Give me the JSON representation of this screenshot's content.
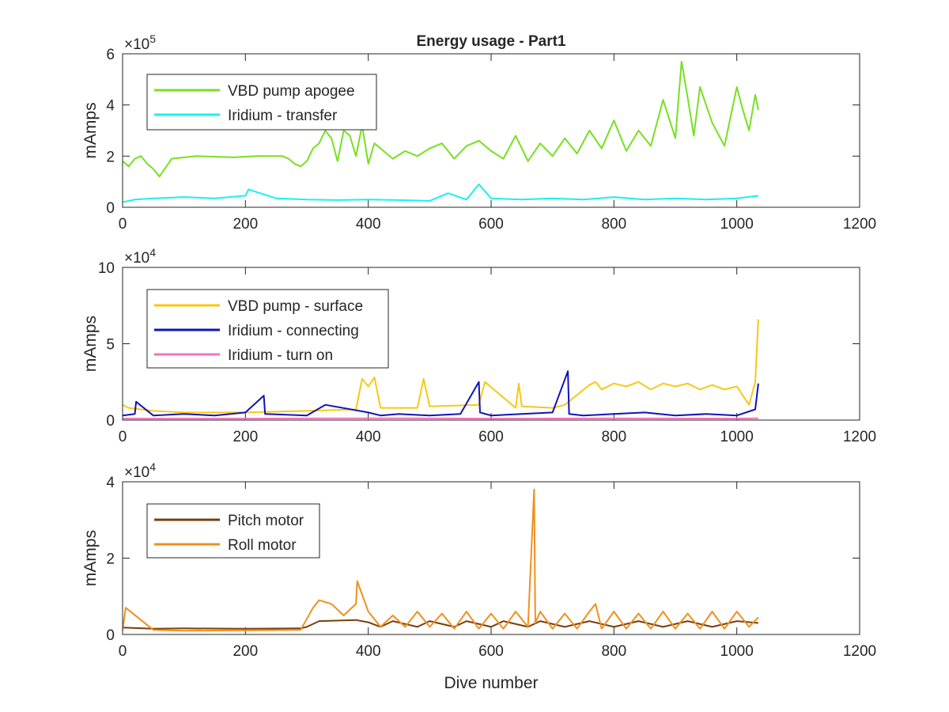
{
  "figure": {
    "title": "Energy usage - Part1",
    "xlabel": "Dive number"
  },
  "chart_data": [
    {
      "type": "line",
      "title": "Energy usage - Part1",
      "xlabel": "",
      "ylabel": "mAmps",
      "xlim": [
        0,
        1200
      ],
      "ylim": [
        0,
        600000
      ],
      "exponent_base": "×10",
      "exponent_power": "5",
      "xticks": [
        "0",
        "200",
        "400",
        "600",
        "800",
        "1000",
        "1200"
      ],
      "yticks": [
        "0",
        "2",
        "4",
        "6"
      ],
      "ytick_values": [
        0,
        200000,
        400000,
        600000
      ],
      "legend_position": "top-left",
      "series": [
        {
          "name": "VBD pump apogee",
          "color": "#77e021",
          "x": [
            0,
            10,
            20,
            30,
            40,
            50,
            60,
            80,
            120,
            180,
            220,
            260,
            270,
            280,
            290,
            300,
            310,
            320,
            330,
            340,
            350,
            360,
            370,
            380,
            390,
            400,
            410,
            420,
            440,
            460,
            480,
            500,
            520,
            540,
            560,
            580,
            600,
            620,
            640,
            660,
            680,
            700,
            720,
            740,
            760,
            780,
            800,
            820,
            840,
            860,
            880,
            900,
            910,
            920,
            930,
            940,
            960,
            980,
            1000,
            1010,
            1020,
            1030,
            1035
          ],
          "values": [
            180000,
            160000,
            190000,
            200000,
            170000,
            150000,
            120000,
            190000,
            200000,
            195000,
            200000,
            200000,
            190000,
            170000,
            160000,
            180000,
            230000,
            250000,
            300000,
            270000,
            180000,
            300000,
            280000,
            200000,
            320000,
            170000,
            250000,
            230000,
            190000,
            220000,
            200000,
            230000,
            250000,
            190000,
            240000,
            260000,
            220000,
            190000,
            280000,
            180000,
            250000,
            200000,
            270000,
            210000,
            300000,
            230000,
            340000,
            220000,
            300000,
            240000,
            420000,
            270000,
            570000,
            430000,
            280000,
            470000,
            330000,
            240000,
            470000,
            380000,
            300000,
            440000,
            380000
          ]
        },
        {
          "name": "Iridium - transfer",
          "color": "#19f0f0",
          "x": [
            0,
            20,
            50,
            100,
            150,
            200,
            205,
            250,
            300,
            350,
            400,
            450,
            500,
            530,
            560,
            580,
            600,
            650,
            700,
            750,
            800,
            850,
            900,
            950,
            1000,
            1035
          ],
          "values": [
            20000,
            30000,
            35000,
            40000,
            35000,
            45000,
            70000,
            35000,
            30000,
            28000,
            30000,
            28000,
            25000,
            55000,
            30000,
            90000,
            35000,
            30000,
            35000,
            30000,
            40000,
            30000,
            35000,
            30000,
            35000,
            45000
          ]
        }
      ]
    },
    {
      "type": "line",
      "title": "",
      "xlabel": "",
      "ylabel": "mAmps",
      "xlim": [
        0,
        1200
      ],
      "ylim": [
        0,
        100000
      ],
      "exponent_base": "×10",
      "exponent_power": "4",
      "xticks": [
        "0",
        "200",
        "400",
        "600",
        "800",
        "1000",
        "1200"
      ],
      "yticks": [
        "0",
        "5",
        "10"
      ],
      "ytick_values": [
        0,
        50000,
        100000
      ],
      "legend_position": "top-left",
      "series": [
        {
          "name": "VBD pump - surface",
          "color": "#f7c815",
          "x": [
            0,
            10,
            50,
            100,
            200,
            300,
            380,
            390,
            400,
            410,
            420,
            480,
            490,
            500,
            580,
            590,
            640,
            645,
            650,
            700,
            720,
            760,
            770,
            780,
            800,
            820,
            840,
            860,
            880,
            900,
            920,
            940,
            960,
            980,
            1000,
            1020,
            1030,
            1035
          ],
          "values": [
            10000,
            8000,
            6000,
            5000,
            5000,
            6000,
            7000,
            27000,
            22000,
            28000,
            8000,
            8000,
            27000,
            9000,
            10000,
            25000,
            8000,
            24000,
            9000,
            8000,
            10000,
            23000,
            25000,
            20000,
            24000,
            22000,
            25000,
            20000,
            24000,
            22000,
            24000,
            20000,
            23000,
            20000,
            22000,
            10000,
            25000,
            66000
          ]
        },
        {
          "name": "Iridium - connecting",
          "color": "#0f14b8",
          "x": [
            0,
            20,
            22,
            50,
            100,
            150,
            200,
            230,
            232,
            300,
            330,
            400,
            420,
            450,
            500,
            550,
            580,
            582,
            600,
            650,
            700,
            725,
            727,
            750,
            800,
            850,
            900,
            950,
            1000,
            1030,
            1035
          ],
          "values": [
            3000,
            4000,
            12000,
            3000,
            4000,
            3000,
            5000,
            16000,
            4000,
            3000,
            10000,
            5000,
            3000,
            4000,
            3000,
            4000,
            25000,
            5000,
            3000,
            4000,
            5000,
            32000,
            4000,
            3000,
            4000,
            5000,
            3000,
            4000,
            3000,
            7000,
            24000
          ]
        },
        {
          "name": "Iridium - turn on",
          "color": "#f072c0",
          "x": [
            0,
            200,
            400,
            600,
            800,
            1000,
            1035
          ],
          "values": [
            1000,
            1000,
            1200,
            1000,
            1100,
            1000,
            1200
          ]
        }
      ]
    },
    {
      "type": "line",
      "title": "",
      "xlabel": "Dive number",
      "ylabel": "mAmps",
      "xlim": [
        0,
        1200
      ],
      "ylim": [
        0,
        40000
      ],
      "exponent_base": "×10",
      "exponent_power": "4",
      "xticks": [
        "0",
        "200",
        "400",
        "600",
        "800",
        "1000",
        "1200"
      ],
      "yticks": [
        "0",
        "2",
        "4"
      ],
      "ytick_values": [
        0,
        20000,
        40000
      ],
      "legend_position": "top-left",
      "series": [
        {
          "name": "Pitch motor",
          "color": "#7a3d0c",
          "x": [
            0,
            50,
            100,
            200,
            290,
            300,
            320,
            380,
            400,
            420,
            440,
            480,
            500,
            540,
            560,
            600,
            620,
            660,
            680,
            720,
            760,
            800,
            840,
            880,
            920,
            960,
            1000,
            1035
          ],
          "values": [
            1800,
            1500,
            1600,
            1500,
            1600,
            2000,
            3500,
            3800,
            3200,
            2000,
            3500,
            2000,
            3500,
            2000,
            3500,
            2000,
            3500,
            2000,
            3500,
            2000,
            3500,
            2000,
            3500,
            2000,
            3500,
            2000,
            3500,
            3000
          ]
        },
        {
          "name": "Roll motor",
          "color": "#f0901e",
          "x": [
            0,
            5,
            50,
            100,
            200,
            290,
            310,
            320,
            340,
            360,
            380,
            382,
            400,
            420,
            440,
            460,
            480,
            500,
            520,
            540,
            560,
            580,
            600,
            620,
            640,
            660,
            670,
            672,
            680,
            700,
            720,
            740,
            760,
            770,
            780,
            800,
            820,
            840,
            860,
            880,
            900,
            920,
            940,
            960,
            980,
            1000,
            1020,
            1035
          ],
          "values": [
            1000,
            7000,
            1200,
            1000,
            1100,
            1200,
            7000,
            9000,
            8000,
            5000,
            8000,
            14000,
            6000,
            2000,
            5000,
            2000,
            6000,
            2000,
            5500,
            1500,
            6000,
            1500,
            5500,
            1500,
            6000,
            2000,
            38000,
            3000,
            6000,
            1500,
            5500,
            1500,
            6000,
            8000,
            1500,
            6000,
            1500,
            5500,
            1500,
            6000,
            1500,
            5500,
            1500,
            6000,
            1500,
            6000,
            2000,
            4500
          ]
        }
      ]
    }
  ]
}
